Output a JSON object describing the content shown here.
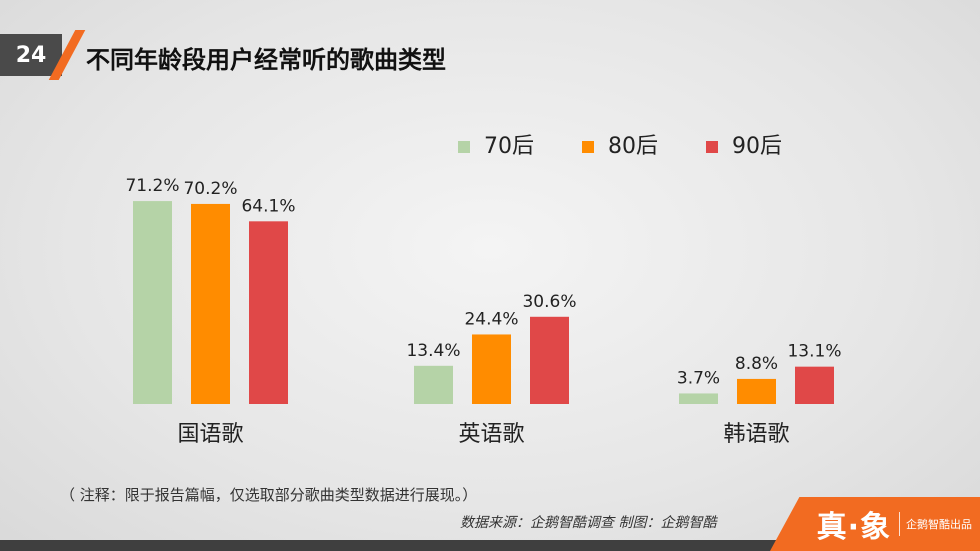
{
  "page": {
    "number": "24",
    "title": "不同年龄段用户经常听的歌曲类型"
  },
  "colors": {
    "accent": "#f26b21",
    "series": [
      "#b5d3a7",
      "#ff8c00",
      "#e04848"
    ]
  },
  "chart_data": {
    "type": "bar",
    "categories": [
      "国语歌",
      "英语歌",
      "韩语歌"
    ],
    "series": [
      {
        "name": "70后",
        "values": [
          71.2,
          13.4,
          3.7
        ],
        "labels": [
          "71.2%",
          "13.4%",
          "3.7%"
        ]
      },
      {
        "name": "80后",
        "values": [
          70.2,
          24.4,
          8.8
        ],
        "labels": [
          "70.2%",
          "24.4%",
          "8.8%"
        ]
      },
      {
        "name": "90后",
        "values": [
          64.1,
          30.6,
          13.1
        ],
        "labels": [
          "64.1%",
          "30.6%",
          "13.1%"
        ]
      }
    ],
    "title": "不同年龄段用户经常听的歌曲类型",
    "unit": "%",
    "ylim": [
      0,
      100
    ],
    "grid": false,
    "legend": "top-right"
  },
  "footer": {
    "note": "（ 注释：限于报告篇幅，仅选取部分歌曲类型数据进行展现。）",
    "source": "数据来源：企鹅智酷调查  制图：企鹅智酷"
  },
  "brand": {
    "logo": "真·象",
    "sub": "企鹅智酷出品"
  }
}
